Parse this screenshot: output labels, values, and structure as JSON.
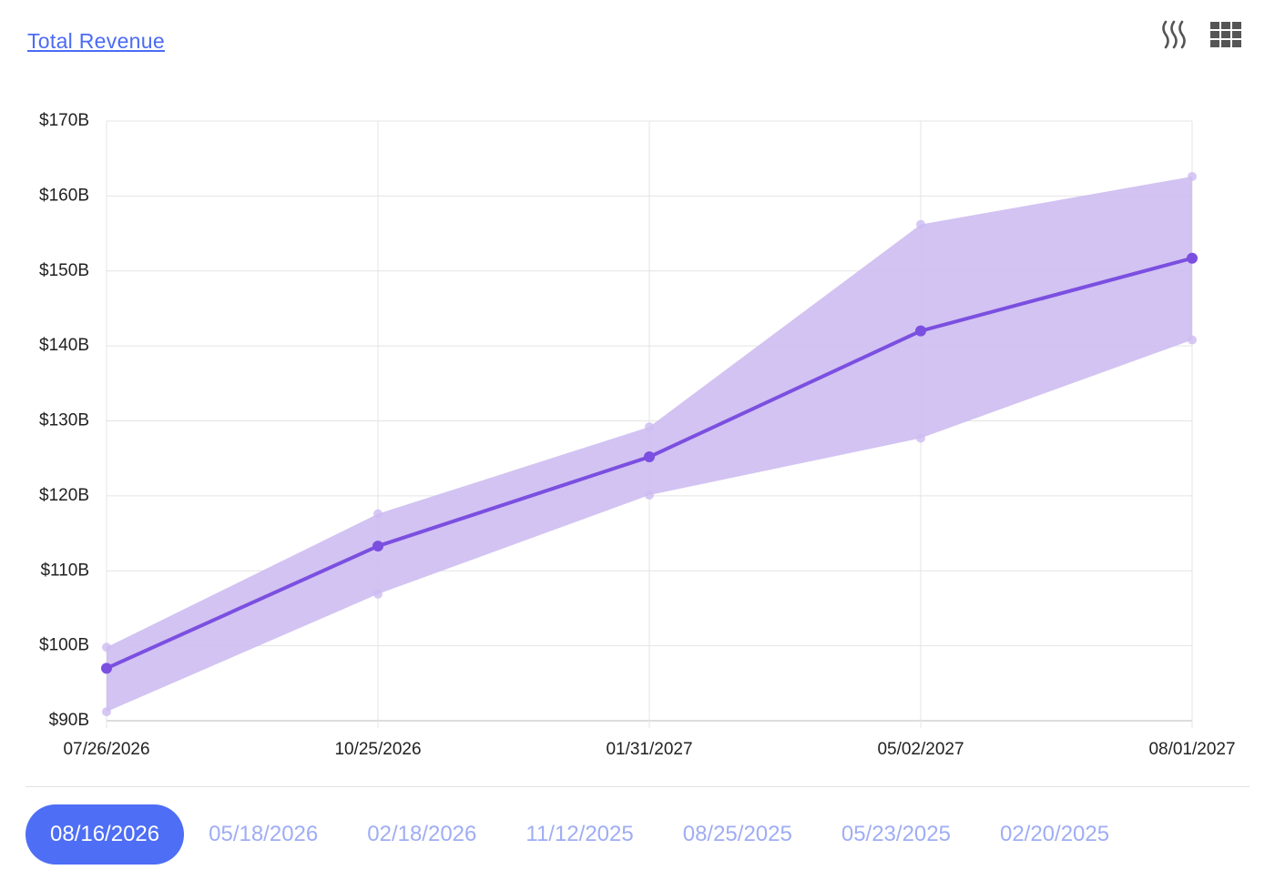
{
  "header": {
    "title": "Total Revenue"
  },
  "chart_data": {
    "type": "line",
    "x": [
      "07/26/2026",
      "10/25/2026",
      "01/31/2027",
      "05/02/2027",
      "08/01/2027"
    ],
    "values": [
      97,
      113.3,
      125.2,
      142,
      151.7
    ],
    "band": {
      "low": [
        91.2,
        106.9,
        120.1,
        127.7,
        140.8
      ],
      "high": [
        99.8,
        117.6,
        129.2,
        156.2,
        162.6
      ]
    },
    "color": "#7b4fe0",
    "band_color": "#cdbcf1",
    "ylim": [
      90,
      170
    ],
    "yticks": [
      {
        "value": 90,
        "label": "$90B"
      },
      {
        "value": 100,
        "label": "$100B"
      },
      {
        "value": 110,
        "label": "$110B"
      },
      {
        "value": 120,
        "label": "$120B"
      },
      {
        "value": 130,
        "label": "$130B"
      },
      {
        "value": 140,
        "label": "$140B"
      },
      {
        "value": 150,
        "label": "$150B"
      },
      {
        "value": 160,
        "label": "$160B"
      },
      {
        "value": 170,
        "label": "$170B"
      }
    ],
    "grid": true
  },
  "tabs": [
    "08/16/2026",
    "05/18/2026",
    "02/18/2026",
    "11/12/2025",
    "08/25/2025",
    "05/23/2025",
    "02/20/2025"
  ]
}
